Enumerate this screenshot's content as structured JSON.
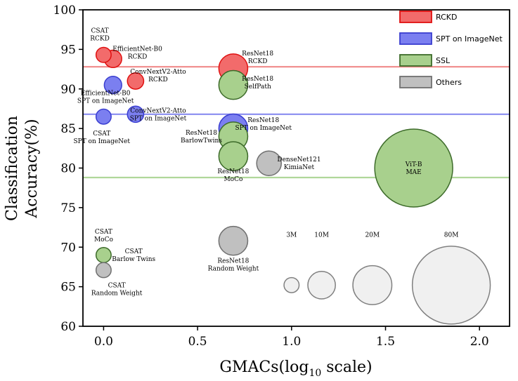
{
  "chart_data": {
    "type": "scatter",
    "xlabel_main": "GMACs(log",
    "xlabel_sub": "10",
    "xlabel_tail": " scale)",
    "ylabel_line1": "Classification",
    "ylabel_line2": "Accuracy(%)",
    "xlim": [
      -0.11,
      2.16
    ],
    "ylim": [
      60,
      100
    ],
    "xticks": [
      {
        "v": 0,
        "t": "0.0"
      },
      {
        "v": 0.5,
        "t": "0.5"
      },
      {
        "v": 1,
        "t": "1.0"
      },
      {
        "v": 1.5,
        "t": "1.5"
      },
      {
        "v": 2,
        "t": "2.0"
      }
    ],
    "yticks": [
      {
        "v": 60,
        "t": "60"
      },
      {
        "v": 65,
        "t": "65"
      },
      {
        "v": 70,
        "t": "70"
      },
      {
        "v": 75,
        "t": "75"
      },
      {
        "v": 80,
        "t": "80"
      },
      {
        "v": 85,
        "t": "85"
      },
      {
        "v": 90,
        "t": "90"
      },
      {
        "v": 95,
        "t": "95"
      },
      {
        "v": 100,
        "t": "100"
      }
    ],
    "categories": {
      "rckd": {
        "name": "RCKD",
        "fill": "#f26b6b",
        "edge": "#e01010"
      },
      "spt": {
        "name": "SPT on ImageNet",
        "fill": "#7b7ff0",
        "edge": "#3a3ed0"
      },
      "ssl": {
        "name": "SSL",
        "fill": "#a8d08d",
        "edge": "#3d6b2a"
      },
      "others": {
        "name": "Others",
        "fill": "#c0c0c0",
        "edge": "#707070"
      }
    },
    "legend": [
      "rckd",
      "spt",
      "ssl",
      "others"
    ],
    "hlines": [
      {
        "y": 92.8,
        "color": "#f08a8a"
      },
      {
        "y": 86.8,
        "color": "#8a8df0"
      },
      {
        "y": 78.8,
        "color": "#b0d79a"
      }
    ],
    "points": [
      {
        "x": 0.0,
        "y": 94.3,
        "params": 3,
        "cat": "rckd",
        "label": [
          "CSAT",
          "RCKD"
        ],
        "lx": -0.02,
        "ly": 96.9
      },
      {
        "x": 0.05,
        "y": 93.8,
        "params": 4,
        "cat": "rckd",
        "label": [
          "EfficientNet-B0",
          "RCKD"
        ],
        "lx": 0.18,
        "ly": 94.6
      },
      {
        "x": 0.17,
        "y": 91.0,
        "params": 3.5,
        "cat": "rckd",
        "label": [
          "ConvNextV2-Atto",
          "RCKD"
        ],
        "lx": 0.29,
        "ly": 91.7
      },
      {
        "x": 0.69,
        "y": 92.6,
        "params": 11,
        "cat": "rckd",
        "label": [
          "ResNet18",
          "RCKD"
        ],
        "lx": 0.82,
        "ly": 94.0
      },
      {
        "x": 0.05,
        "y": 90.5,
        "params": 4,
        "cat": "spt",
        "label": [
          "EfficientNet-B0",
          "SPT on ImageNet"
        ],
        "lx": 0.01,
        "ly": 89.0
      },
      {
        "x": 0.17,
        "y": 86.8,
        "params": 3.5,
        "cat": "spt",
        "label": [
          "ConvNextV2-Atto",
          "SPT on ImageNet"
        ],
        "lx": 0.29,
        "ly": 86.8
      },
      {
        "x": 0.0,
        "y": 86.5,
        "params": 3,
        "cat": "spt",
        "label": [
          "CSAT",
          "SPT on ImageNet"
        ],
        "lx": -0.01,
        "ly": 83.9
      },
      {
        "x": 0.69,
        "y": 85.0,
        "params": 11,
        "cat": "spt",
        "label": [
          "ResNet18",
          "SPT on ImageNet"
        ],
        "lx": 0.85,
        "ly": 85.6
      },
      {
        "x": 0.69,
        "y": 90.5,
        "params": 11,
        "cat": "ssl",
        "label": [
          "ResNet18",
          "SelfPath"
        ],
        "lx": 0.82,
        "ly": 90.8
      },
      {
        "x": 0.69,
        "y": 84.0,
        "params": 11,
        "cat": "ssl",
        "label": [
          "ResNet18",
          "BarlowTwins"
        ],
        "lx": 0.52,
        "ly": 84.0
      },
      {
        "x": 0.69,
        "y": 81.5,
        "params": 11,
        "cat": "ssl",
        "label": [
          "ResNet18",
          "MoCo"
        ],
        "lx": 0.69,
        "ly": 79.1
      },
      {
        "x": 1.65,
        "y": 80.0,
        "params": 80,
        "cat": "ssl",
        "label": [
          "ViT-B",
          "MAE"
        ],
        "lx": 1.65,
        "ly": 80.0
      },
      {
        "x": 0.0,
        "y": 69.0,
        "params": 3,
        "cat": "ssl",
        "label": [
          "CSAT",
          "MoCo"
        ],
        "lx": 0.0,
        "ly": 71.5
      },
      {
        "x": 0.88,
        "y": 80.6,
        "params": 8,
        "cat": "others",
        "label": [
          "DenseNet121",
          "KimiaNet"
        ],
        "lx": 1.04,
        "ly": 80.6
      },
      {
        "x": 0.69,
        "y": 70.8,
        "params": 11,
        "cat": "others",
        "label": [
          "ResNet18",
          "Random Weight"
        ],
        "lx": 0.69,
        "ly": 67.8
      },
      {
        "x": 0.0,
        "y": 67.1,
        "params": 3,
        "cat": "others",
        "label": [
          "CSAT",
          "Random Weight"
        ],
        "lx": 0.07,
        "ly": 64.7
      }
    ],
    "extra_labels": [
      {
        "text": "CSAT",
        "lines": [
          "CSAT",
          "Barlow Twins"
        ],
        "lx": 0.16,
        "ly": 69.0
      }
    ],
    "size_reference": [
      {
        "x": 1.0,
        "params": 3,
        "label": "3M"
      },
      {
        "x": 1.16,
        "params": 10,
        "label": "10M"
      },
      {
        "x": 1.43,
        "params": 20,
        "label": "20M"
      },
      {
        "x": 1.85,
        "params": 80,
        "label": "80M"
      }
    ],
    "size_reference_y": 65.2,
    "size_reference_label_y": 71.3,
    "size_reference_color": {
      "fill": "#f0f0f0",
      "edge": "#808080"
    }
  }
}
